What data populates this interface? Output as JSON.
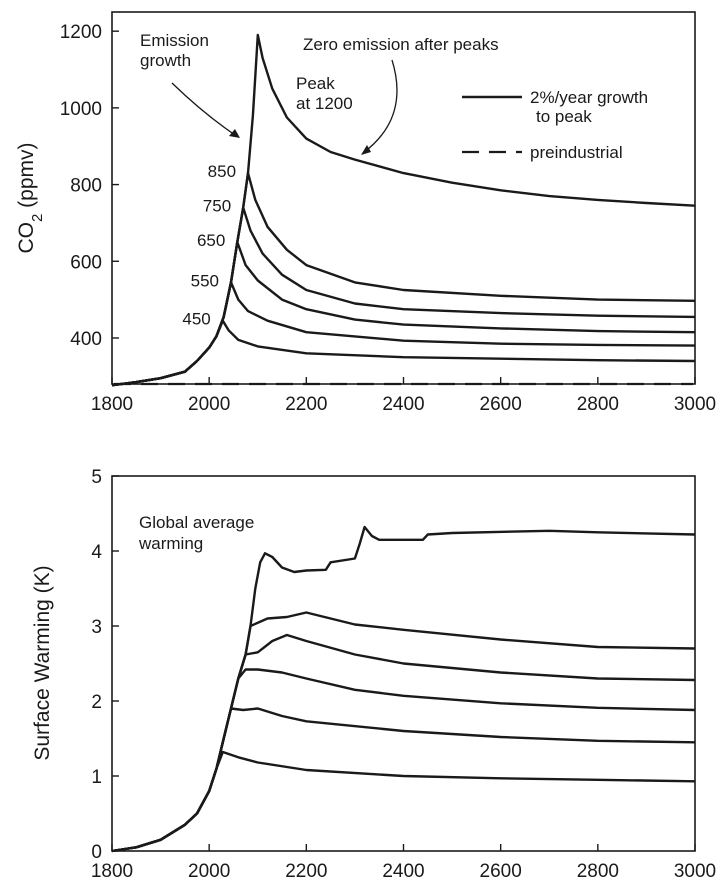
{
  "chart_data": [
    {
      "type": "line",
      "panel": "top",
      "ylabel": {
        "main": "CO",
        "sub": "2",
        "unit": " (ppmv)"
      },
      "xlim": [
        1800,
        3000
      ],
      "ylim": [
        280,
        1250
      ],
      "xticks": [
        1800,
        2000,
        2200,
        2400,
        2600,
        2800,
        3000
      ],
      "yticks": [
        400,
        600,
        800,
        1000,
        1200
      ],
      "grid": false,
      "legend": {
        "placement": "top-right",
        "entries": [
          {
            "line1": "2%/year growth",
            "line2": "to peak",
            "style": "solid"
          },
          {
            "line1": "preindustrial",
            "style": "dashed"
          }
        ]
      },
      "annotations": {
        "emission_growth": [
          "Emission",
          "growth"
        ],
        "zero_emission": "Zero emission after peaks",
        "peak": [
          "Peak",
          "at 1200"
        ]
      },
      "preindustrial": 280,
      "series": [
        {
          "label": "450",
          "points": [
            [
              1800,
              277
            ],
            [
              1850,
              285
            ],
            [
              1900,
              295
            ],
            [
              1950,
              312
            ],
            [
              1975,
              340
            ],
            [
              2000,
              375
            ],
            [
              2015,
              405
            ],
            [
              2028,
              445
            ],
            [
              2040,
              420
            ],
            [
              2060,
              395
            ],
            [
              2100,
              378
            ],
            [
              2200,
              360
            ],
            [
              2400,
              350
            ],
            [
              2600,
              346
            ],
            [
              2800,
              342
            ],
            [
              3000,
              340
            ]
          ]
        },
        {
          "label": "550",
          "points": [
            [
              1800,
              277
            ],
            [
              1850,
              285
            ],
            [
              1900,
              295
            ],
            [
              1950,
              312
            ],
            [
              1975,
              340
            ],
            [
              2000,
              375
            ],
            [
              2015,
              405
            ],
            [
              2030,
              455
            ],
            [
              2045,
              545
            ],
            [
              2060,
              500
            ],
            [
              2080,
              470
            ],
            [
              2120,
              445
            ],
            [
              2200,
              415
            ],
            [
              2400,
              393
            ],
            [
              2600,
              385
            ],
            [
              2800,
              382
            ],
            [
              3000,
              380
            ]
          ]
        },
        {
          "label": "650",
          "points": [
            [
              1800,
              277
            ],
            [
              1850,
              285
            ],
            [
              1900,
              295
            ],
            [
              1950,
              312
            ],
            [
              1975,
              340
            ],
            [
              2000,
              375
            ],
            [
              2015,
              405
            ],
            [
              2030,
              455
            ],
            [
              2045,
              545
            ],
            [
              2058,
              650
            ],
            [
              2075,
              590
            ],
            [
              2100,
              550
            ],
            [
              2150,
              500
            ],
            [
              2200,
              475
            ],
            [
              2300,
              448
            ],
            [
              2400,
              435
            ],
            [
              2600,
              425
            ],
            [
              2800,
              418
            ],
            [
              3000,
              415
            ]
          ]
        },
        {
          "label": "750",
          "points": [
            [
              1800,
              277
            ],
            [
              1850,
              285
            ],
            [
              1900,
              295
            ],
            [
              1950,
              312
            ],
            [
              1975,
              340
            ],
            [
              2000,
              375
            ],
            [
              2015,
              405
            ],
            [
              2030,
              455
            ],
            [
              2045,
              545
            ],
            [
              2058,
              650
            ],
            [
              2070,
              740
            ],
            [
              2085,
              680
            ],
            [
              2110,
              620
            ],
            [
              2150,
              565
            ],
            [
              2200,
              525
            ],
            [
              2300,
              490
            ],
            [
              2400,
              475
            ],
            [
              2600,
              465
            ],
            [
              2800,
              458
            ],
            [
              3000,
              455
            ]
          ]
        },
        {
          "label": "850",
          "points": [
            [
              1800,
              277
            ],
            [
              1850,
              285
            ],
            [
              1900,
              295
            ],
            [
              1950,
              312
            ],
            [
              1975,
              340
            ],
            [
              2000,
              375
            ],
            [
              2015,
              405
            ],
            [
              2030,
              455
            ],
            [
              2045,
              545
            ],
            [
              2058,
              650
            ],
            [
              2070,
              740
            ],
            [
              2080,
              830
            ],
            [
              2095,
              760
            ],
            [
              2120,
              690
            ],
            [
              2160,
              630
            ],
            [
              2200,
              590
            ],
            [
              2300,
              545
            ],
            [
              2400,
              525
            ],
            [
              2600,
              510
            ],
            [
              2800,
              500
            ],
            [
              3000,
              497
            ]
          ]
        },
        {
          "label": "1200",
          "points": [
            [
              1800,
              277
            ],
            [
              1850,
              285
            ],
            [
              1900,
              295
            ],
            [
              1950,
              312
            ],
            [
              1975,
              340
            ],
            [
              2000,
              375
            ],
            [
              2015,
              405
            ],
            [
              2030,
              455
            ],
            [
              2045,
              545
            ],
            [
              2058,
              650
            ],
            [
              2070,
              740
            ],
            [
              2080,
              830
            ],
            [
              2090,
              980
            ],
            [
              2100,
              1190
            ],
            [
              2110,
              1130
            ],
            [
              2130,
              1050
            ],
            [
              2160,
              975
            ],
            [
              2200,
              920
            ],
            [
              2250,
              885
            ],
            [
              2300,
              865
            ],
            [
              2400,
              830
            ],
            [
              2500,
              805
            ],
            [
              2600,
              785
            ],
            [
              2700,
              770
            ],
            [
              2800,
              760
            ],
            [
              2900,
              752
            ],
            [
              3000,
              745
            ]
          ]
        }
      ]
    },
    {
      "type": "line",
      "panel": "bottom",
      "ylabel": "Surface Warming (K)",
      "xlim": [
        1800,
        3000
      ],
      "ylim": [
        0,
        5
      ],
      "xticks": [
        1800,
        2000,
        2200,
        2400,
        2600,
        2800,
        3000
      ],
      "yticks": [
        0,
        1,
        2,
        3,
        4,
        5
      ],
      "grid": false,
      "annotations": {
        "global_average": [
          "Global average",
          "warming"
        ]
      },
      "series": [
        {
          "label": "450",
          "points": [
            [
              1800,
              0
            ],
            [
              1850,
              0.05
            ],
            [
              1900,
              0.15
            ],
            [
              1950,
              0.35
            ],
            [
              1975,
              0.5
            ],
            [
              2000,
              0.8
            ],
            [
              2015,
              1.1
            ],
            [
              2028,
              1.32
            ],
            [
              2060,
              1.25
            ],
            [
              2100,
              1.18
            ],
            [
              2200,
              1.08
            ],
            [
              2400,
              1.0
            ],
            [
              2600,
              0.97
            ],
            [
              2800,
              0.95
            ],
            [
              3000,
              0.93
            ]
          ]
        },
        {
          "label": "550",
          "points": [
            [
              1800,
              0
            ],
            [
              1850,
              0.05
            ],
            [
              1900,
              0.15
            ],
            [
              1950,
              0.35
            ],
            [
              1975,
              0.5
            ],
            [
              2000,
              0.8
            ],
            [
              2015,
              1.1
            ],
            [
              2030,
              1.5
            ],
            [
              2045,
              1.9
            ],
            [
              2070,
              1.88
            ],
            [
              2100,
              1.9
            ],
            [
              2150,
              1.8
            ],
            [
              2200,
              1.73
            ],
            [
              2400,
              1.6
            ],
            [
              2600,
              1.52
            ],
            [
              2800,
              1.47
            ],
            [
              3000,
              1.45
            ]
          ]
        },
        {
          "label": "650",
          "points": [
            [
              1800,
              0
            ],
            [
              1850,
              0.05
            ],
            [
              1900,
              0.15
            ],
            [
              1950,
              0.35
            ],
            [
              1975,
              0.5
            ],
            [
              2000,
              0.8
            ],
            [
              2015,
              1.1
            ],
            [
              2030,
              1.5
            ],
            [
              2045,
              1.9
            ],
            [
              2060,
              2.3
            ],
            [
              2075,
              2.42
            ],
            [
              2100,
              2.42
            ],
            [
              2150,
              2.38
            ],
            [
              2200,
              2.3
            ],
            [
              2300,
              2.15
            ],
            [
              2400,
              2.07
            ],
            [
              2600,
              1.97
            ],
            [
              2800,
              1.91
            ],
            [
              3000,
              1.88
            ]
          ]
        },
        {
          "label": "750",
          "points": [
            [
              1800,
              0
            ],
            [
              1850,
              0.05
            ],
            [
              1900,
              0.15
            ],
            [
              1950,
              0.35
            ],
            [
              1975,
              0.5
            ],
            [
              2000,
              0.8
            ],
            [
              2015,
              1.1
            ],
            [
              2030,
              1.5
            ],
            [
              2045,
              1.9
            ],
            [
              2060,
              2.3
            ],
            [
              2075,
              2.62
            ],
            [
              2100,
              2.65
            ],
            [
              2130,
              2.8
            ],
            [
              2160,
              2.88
            ],
            [
              2200,
              2.8
            ],
            [
              2300,
              2.62
            ],
            [
              2400,
              2.5
            ],
            [
              2600,
              2.38
            ],
            [
              2800,
              2.3
            ],
            [
              3000,
              2.28
            ]
          ]
        },
        {
          "label": "850",
          "points": [
            [
              1800,
              0
            ],
            [
              1850,
              0.05
            ],
            [
              1900,
              0.15
            ],
            [
              1950,
              0.35
            ],
            [
              1975,
              0.5
            ],
            [
              2000,
              0.8
            ],
            [
              2015,
              1.1
            ],
            [
              2030,
              1.5
            ],
            [
              2045,
              1.9
            ],
            [
              2060,
              2.3
            ],
            [
              2075,
              2.62
            ],
            [
              2085,
              3.0
            ],
            [
              2120,
              3.1
            ],
            [
              2160,
              3.12
            ],
            [
              2200,
              3.18
            ],
            [
              2250,
              3.1
            ],
            [
              2300,
              3.02
            ],
            [
              2400,
              2.95
            ],
            [
              2600,
              2.82
            ],
            [
              2800,
              2.72
            ],
            [
              3000,
              2.7
            ]
          ]
        },
        {
          "label": "1200",
          "points": [
            [
              1800,
              0
            ],
            [
              1850,
              0.05
            ],
            [
              1900,
              0.15
            ],
            [
              1950,
              0.35
            ],
            [
              1975,
              0.5
            ],
            [
              2000,
              0.8
            ],
            [
              2015,
              1.1
            ],
            [
              2030,
              1.5
            ],
            [
              2045,
              1.9
            ],
            [
              2060,
              2.3
            ],
            [
              2075,
              2.62
            ],
            [
              2085,
              3.0
            ],
            [
              2095,
              3.5
            ],
            [
              2105,
              3.85
            ],
            [
              2115,
              3.97
            ],
            [
              2130,
              3.92
            ],
            [
              2150,
              3.78
            ],
            [
              2175,
              3.72
            ],
            [
              2200,
              3.74
            ],
            [
              2240,
              3.75
            ],
            [
              2250,
              3.85
            ],
            [
              2300,
              3.9
            ],
            [
              2310,
              4.1
            ],
            [
              2320,
              4.32
            ],
            [
              2335,
              4.2
            ],
            [
              2350,
              4.15
            ],
            [
              2440,
              4.15
            ],
            [
              2450,
              4.22
            ],
            [
              2500,
              4.24
            ],
            [
              2700,
              4.27
            ],
            [
              2800,
              4.25
            ],
            [
              3000,
              4.22
            ]
          ]
        }
      ]
    }
  ]
}
